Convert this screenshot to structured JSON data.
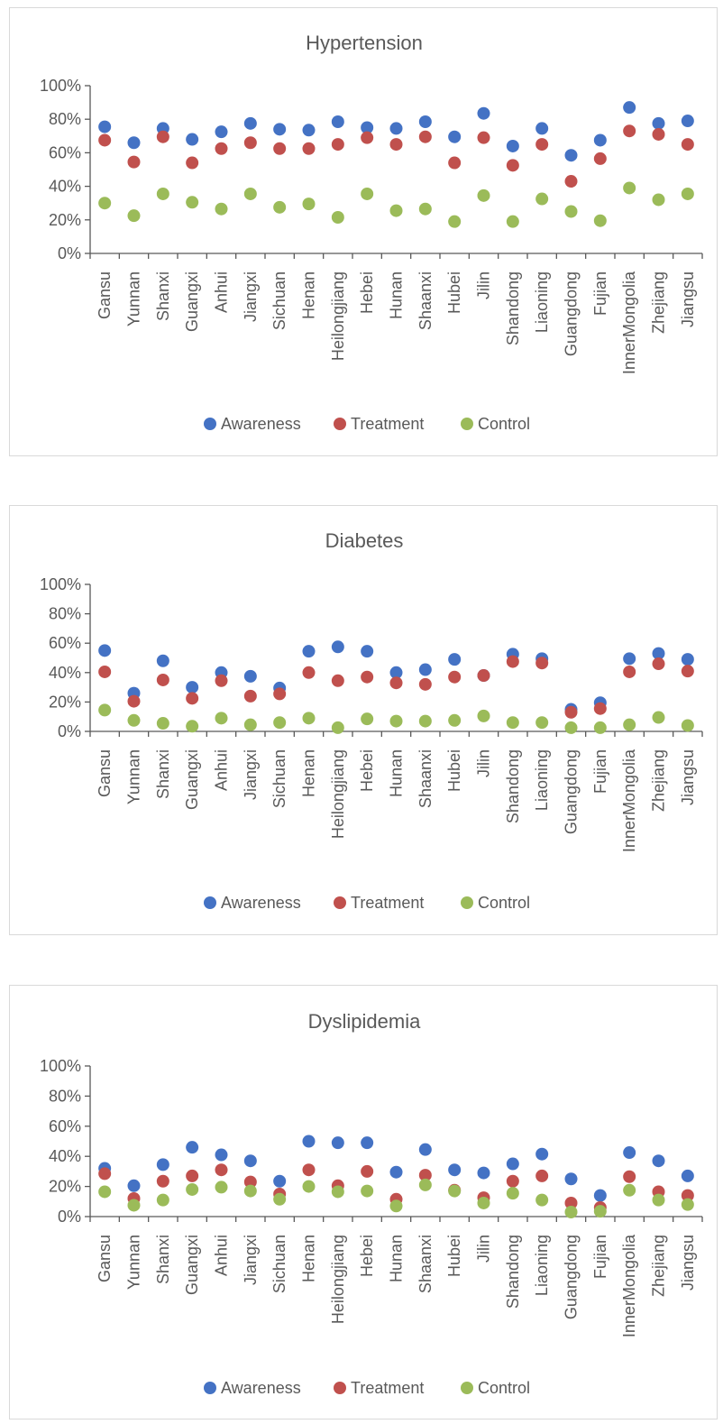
{
  "colors": {
    "awareness": "#4472C4",
    "treatment": "#C0504D",
    "control": "#9BBB59",
    "axis": "#595959"
  },
  "legend_position": "bottom",
  "chart_data": [
    {
      "type": "scatter",
      "title": "Hypertension",
      "categories": [
        "Gansu",
        "Yunnan",
        "Shanxi",
        "Guangxi",
        "Anhui",
        "Jiangxi",
        "Sichuan",
        "Henan",
        "Heilongjiang",
        "Hebei",
        "Hunan",
        "Shaanxi",
        "Hubei",
        "Jilin",
        "Shandong",
        "Liaoning",
        "Guangdong",
        "Fujian",
        "InnerMongolia",
        "Zhejiang",
        "Jiangsu"
      ],
      "ylim": [
        0,
        1
      ],
      "yticks": [
        0,
        0.2,
        0.4,
        0.6,
        0.8,
        1.0
      ],
      "ytick_labels": [
        "0%",
        "20%",
        "40%",
        "60%",
        "80%",
        "100%"
      ],
      "series": [
        {
          "name": "Awareness",
          "color": "#4472C4",
          "values": [
            0.755,
            0.66,
            0.745,
            0.68,
            0.725,
            0.775,
            0.74,
            0.735,
            0.785,
            0.75,
            0.745,
            0.785,
            0.695,
            0.835,
            0.64,
            0.745,
            0.585,
            0.675,
            0.87,
            0.775,
            0.79
          ]
        },
        {
          "name": "Treatment",
          "color": "#C0504D",
          "values": [
            0.675,
            0.545,
            0.695,
            0.54,
            0.625,
            0.66,
            0.625,
            0.625,
            0.65,
            0.69,
            0.65,
            0.695,
            0.54,
            0.69,
            0.525,
            0.65,
            0.43,
            0.565,
            0.73,
            0.71,
            0.65
          ]
        },
        {
          "name": "Control",
          "color": "#9BBB59",
          "values": [
            0.3,
            0.225,
            0.355,
            0.305,
            0.265,
            0.355,
            0.275,
            0.295,
            0.215,
            0.355,
            0.255,
            0.265,
            0.19,
            0.345,
            0.19,
            0.325,
            0.25,
            0.195,
            0.39,
            0.32,
            0.355
          ]
        }
      ]
    },
    {
      "type": "scatter",
      "title": "Diabetes",
      "categories": [
        "Gansu",
        "Yunnan",
        "Shanxi",
        "Guangxi",
        "Anhui",
        "Jiangxi",
        "Sichuan",
        "Henan",
        "Heilongjiang",
        "Hebei",
        "Hunan",
        "Shaanxi",
        "Hubei",
        "Jilin",
        "Shandong",
        "Liaoning",
        "Guangdong",
        "Fujian",
        "InnerMongolia",
        "Zhejiang",
        "Jiangsu"
      ],
      "ylim": [
        0,
        1
      ],
      "yticks": [
        0,
        0.2,
        0.4,
        0.6,
        0.8,
        1.0
      ],
      "ytick_labels": [
        "0%",
        "20%",
        "40%",
        "60%",
        "80%",
        "100%"
      ],
      "series": [
        {
          "name": "Awareness",
          "color": "#4472C4",
          "values": [
            0.55,
            0.26,
            0.48,
            0.3,
            0.4,
            0.375,
            0.295,
            0.545,
            0.575,
            0.545,
            0.4,
            0.42,
            0.49,
            0.38,
            0.525,
            0.495,
            0.15,
            0.195,
            0.495,
            0.53,
            0.49
          ]
        },
        {
          "name": "Treatment",
          "color": "#C0504D",
          "values": [
            0.405,
            0.205,
            0.35,
            0.225,
            0.345,
            0.24,
            0.255,
            0.4,
            0.345,
            0.37,
            0.33,
            0.32,
            0.37,
            0.38,
            0.475,
            0.465,
            0.13,
            0.155,
            0.405,
            0.46,
            0.41
          ]
        },
        {
          "name": "Control",
          "color": "#9BBB59",
          "values": [
            0.145,
            0.075,
            0.055,
            0.035,
            0.09,
            0.045,
            0.06,
            0.09,
            0.025,
            0.085,
            0.07,
            0.07,
            0.075,
            0.105,
            0.06,
            0.06,
            0.025,
            0.025,
            0.045,
            0.095,
            0.04
          ]
        }
      ]
    },
    {
      "type": "scatter",
      "title": "Dyslipidemia",
      "categories": [
        "Gansu",
        "Yunnan",
        "Shanxi",
        "Guangxi",
        "Anhui",
        "Jiangxi",
        "Sichuan",
        "Henan",
        "Heilongjiang",
        "Hebei",
        "Hunan",
        "Shaanxi",
        "Hubei",
        "Jilin",
        "Shandong",
        "Liaoning",
        "Guangdong",
        "Fujian",
        "InnerMongolia",
        "Zhejiang",
        "Jiangsu"
      ],
      "ylim": [
        0,
        1
      ],
      "yticks": [
        0,
        0.2,
        0.4,
        0.6,
        0.8,
        1.0
      ],
      "ytick_labels": [
        "0%",
        "20%",
        "40%",
        "60%",
        "80%",
        "100%"
      ],
      "series": [
        {
          "name": "Awareness",
          "color": "#4472C4",
          "values": [
            0.32,
            0.205,
            0.345,
            0.46,
            0.41,
            0.37,
            0.235,
            0.5,
            0.49,
            0.49,
            0.295,
            0.445,
            0.31,
            0.29,
            0.35,
            0.415,
            0.25,
            0.14,
            0.425,
            0.37,
            0.27
          ]
        },
        {
          "name": "Treatment",
          "color": "#C0504D",
          "values": [
            0.285,
            0.12,
            0.235,
            0.27,
            0.31,
            0.23,
            0.15,
            0.31,
            0.205,
            0.3,
            0.115,
            0.275,
            0.175,
            0.125,
            0.235,
            0.27,
            0.09,
            0.06,
            0.265,
            0.165,
            0.14
          ]
        },
        {
          "name": "Control",
          "color": "#9BBB59",
          "values": [
            0.165,
            0.075,
            0.11,
            0.18,
            0.195,
            0.17,
            0.115,
            0.2,
            0.165,
            0.17,
            0.07,
            0.21,
            0.17,
            0.09,
            0.155,
            0.11,
            0.03,
            0.035,
            0.175,
            0.11,
            0.08
          ]
        }
      ]
    }
  ]
}
